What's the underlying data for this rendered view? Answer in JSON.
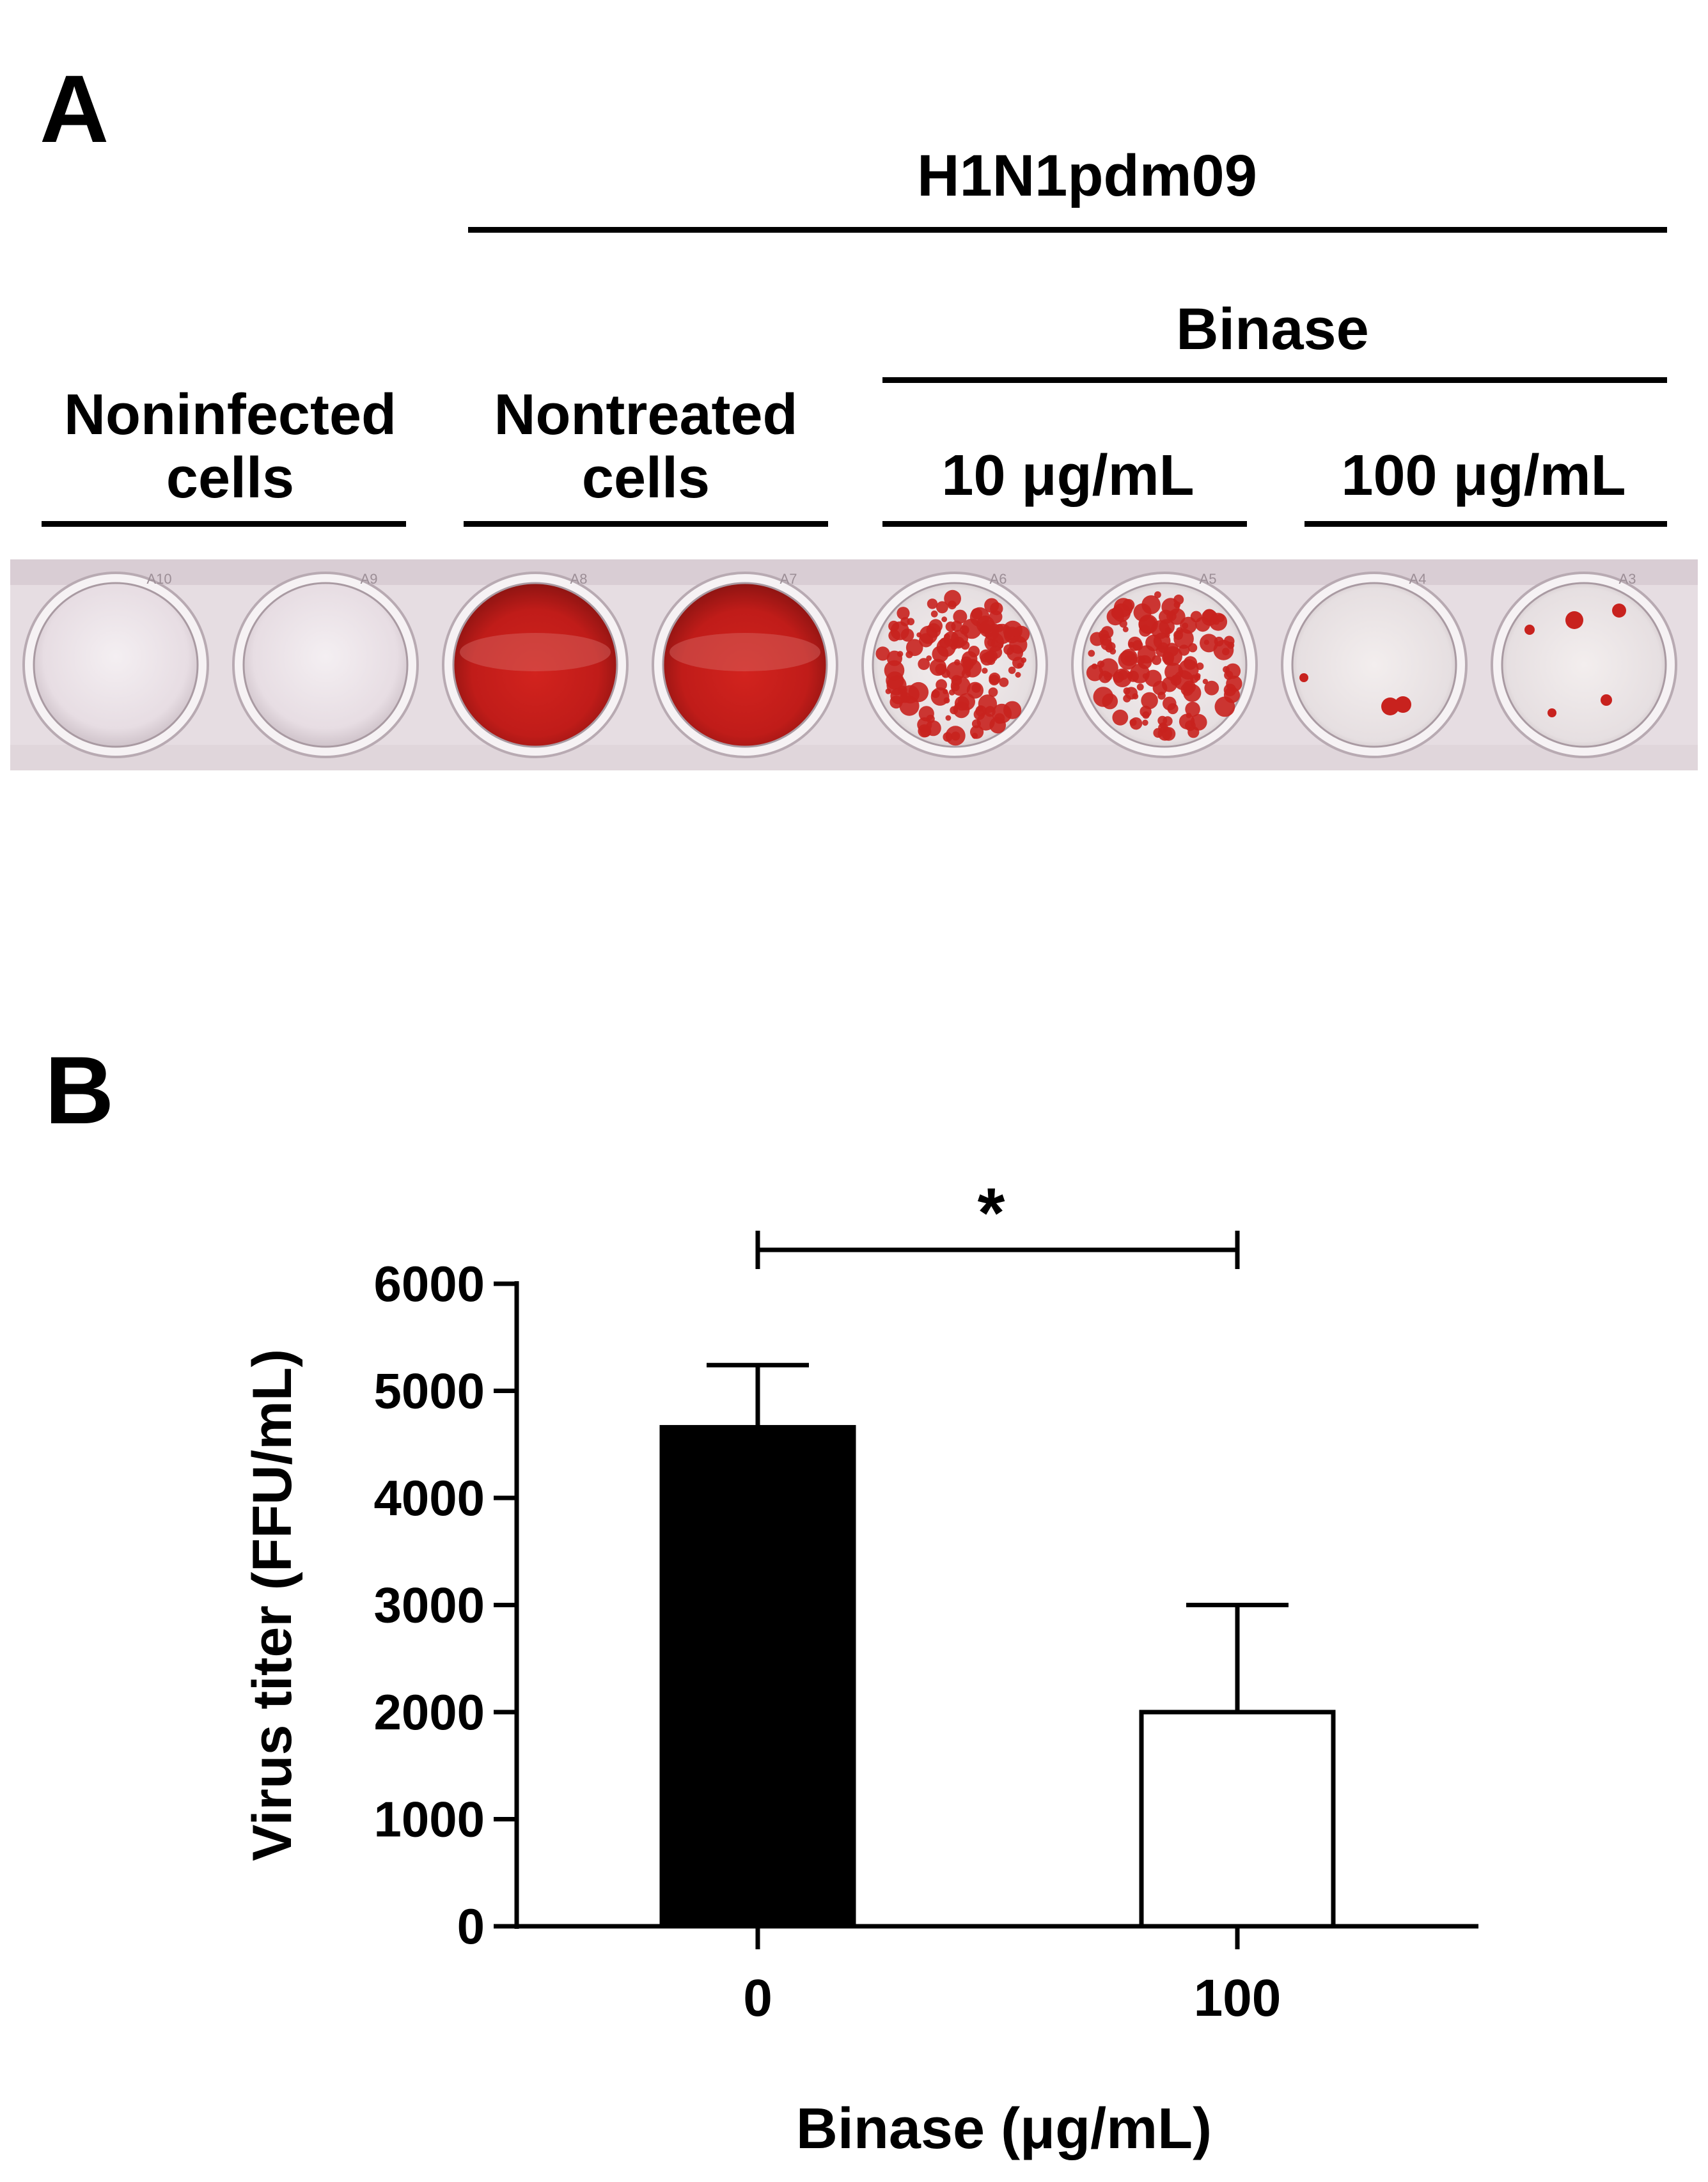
{
  "panel_a": {
    "letter": "A",
    "virus_label": "H1N1pdm09",
    "treatment_label": "Binase",
    "groups": [
      {
        "line1": "Noninfected",
        "line2": "cells"
      },
      {
        "line1": "Nontreated",
        "line2": "cells"
      },
      {
        "line1": "10 μg/mL",
        "line2": ""
      },
      {
        "line1": "100 μg/mL",
        "line2": ""
      }
    ],
    "plate_well_codes": [
      "A10",
      "A9",
      "A8",
      "A7",
      "A6",
      "A5",
      "A4",
      "A3"
    ],
    "colors": {
      "stain": "#c8221e",
      "plate": "#e8dfe4"
    }
  },
  "panel_b": {
    "letter": "B",
    "significance": "*"
  },
  "chart_data": {
    "type": "bar",
    "categories": [
      "0",
      "100"
    ],
    "values": [
      4660,
      2000
    ],
    "error_upper": [
      5240,
      3000
    ],
    "bar_colors": [
      "#000000",
      "#ffffff"
    ],
    "title": "",
    "xlabel": "Binase (μg/mL)",
    "ylabel": "Virus titer (FFU/mL)",
    "ylim": [
      0,
      6000
    ],
    "yticks": [
      0,
      1000,
      2000,
      3000,
      4000,
      5000,
      6000
    ],
    "grid": false,
    "legend": "none"
  }
}
